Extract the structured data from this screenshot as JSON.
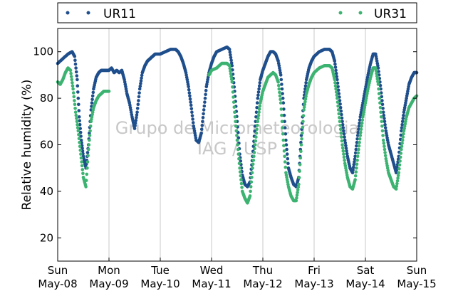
{
  "chart_data": {
    "type": "scatter",
    "ylabel": "Relative humidity (%)",
    "ylim": [
      10,
      110
    ],
    "yticks": [
      20,
      40,
      60,
      80,
      100
    ],
    "x_unit": "days since Sun May-08 00:00",
    "xlim": [
      0,
      7
    ],
    "xticks": [
      {
        "x": 0,
        "day": "Sun",
        "date": "May-08"
      },
      {
        "x": 1,
        "day": "Mon",
        "date": "May-09"
      },
      {
        "x": 2,
        "day": "Tue",
        "date": "May-10"
      },
      {
        "x": 3,
        "day": "Wed",
        "date": "May-11"
      },
      {
        "x": 4,
        "day": "Thu",
        "date": "May-12"
      },
      {
        "x": 5,
        "day": "Fri",
        "date": "May-13"
      },
      {
        "x": 6,
        "day": "Sat",
        "date": "May-14"
      },
      {
        "x": 7,
        "day": "Sun",
        "date": "May-15"
      }
    ],
    "grid": "vertical",
    "legend_position": "top",
    "watermark": [
      "Grupo de Micrometeorologia",
      "IAG / USP"
    ],
    "series": [
      {
        "name": "UR11",
        "color": "#1f4e8c",
        "points": [
          [
            0.0,
            95
          ],
          [
            0.1,
            97
          ],
          [
            0.2,
            99
          ],
          [
            0.28,
            100
          ],
          [
            0.33,
            98
          ],
          [
            0.38,
            88
          ],
          [
            0.42,
            72
          ],
          [
            0.46,
            62
          ],
          [
            0.5,
            55
          ],
          [
            0.55,
            50
          ],
          [
            0.6,
            60
          ],
          [
            0.65,
            75
          ],
          [
            0.7,
            84
          ],
          [
            0.75,
            89
          ],
          [
            0.8,
            91
          ],
          [
            0.85,
            92
          ],
          [
            0.9,
            92
          ],
          [
            0.95,
            92
          ],
          [
            1.0,
            92
          ],
          [
            1.05,
            93
          ],
          [
            1.1,
            91
          ],
          [
            1.15,
            92
          ],
          [
            1.2,
            91
          ],
          [
            1.25,
            92
          ],
          [
            1.3,
            88
          ],
          [
            1.35,
            82
          ],
          [
            1.4,
            78
          ],
          [
            1.45,
            72
          ],
          [
            1.5,
            67
          ],
          [
            1.55,
            74
          ],
          [
            1.6,
            84
          ],
          [
            1.65,
            91
          ],
          [
            1.7,
            94
          ],
          [
            1.75,
            96
          ],
          [
            1.8,
            97
          ],
          [
            1.85,
            98
          ],
          [
            1.9,
            99
          ],
          [
            2.0,
            99
          ],
          [
            2.1,
            100
          ],
          [
            2.2,
            101
          ],
          [
            2.3,
            101
          ],
          [
            2.35,
            100
          ],
          [
            2.4,
            98
          ],
          [
            2.45,
            95
          ],
          [
            2.5,
            91
          ],
          [
            2.55,
            85
          ],
          [
            2.6,
            77
          ],
          [
            2.65,
            68
          ],
          [
            2.7,
            62
          ],
          [
            2.75,
            61
          ],
          [
            2.8,
            65
          ],
          [
            2.85,
            75
          ],
          [
            2.9,
            85
          ],
          [
            2.95,
            91
          ],
          [
            3.0,
            95
          ],
          [
            3.05,
            98
          ],
          [
            3.1,
            100
          ],
          [
            3.2,
            101
          ],
          [
            3.3,
            102
          ],
          [
            3.35,
            101
          ],
          [
            3.4,
            94
          ],
          [
            3.45,
            83
          ],
          [
            3.5,
            70
          ],
          [
            3.55,
            56
          ],
          [
            3.6,
            47
          ],
          [
            3.65,
            43
          ],
          [
            3.7,
            42
          ],
          [
            3.75,
            44
          ],
          [
            3.8,
            55
          ],
          [
            3.85,
            68
          ],
          [
            3.9,
            80
          ],
          [
            3.95,
            88
          ],
          [
            4.0,
            92
          ],
          [
            4.05,
            95
          ],
          [
            4.1,
            98
          ],
          [
            4.15,
            100
          ],
          [
            4.2,
            100
          ],
          [
            4.25,
            99
          ],
          [
            4.3,
            96
          ],
          [
            4.35,
            90
          ],
          [
            4.4,
            78
          ],
          [
            4.45,
            62
          ],
          [
            4.5,
            50
          ],
          [
            4.55,
            46
          ],
          [
            4.6,
            43
          ],
          [
            4.65,
            42
          ],
          [
            4.7,
            46
          ],
          [
            4.75,
            64
          ],
          [
            4.8,
            80
          ],
          [
            4.85,
            88
          ],
          [
            4.9,
            93
          ],
          [
            4.95,
            96
          ],
          [
            5.0,
            98
          ],
          [
            5.1,
            100
          ],
          [
            5.2,
            101
          ],
          [
            5.3,
            101
          ],
          [
            5.35,
            100
          ],
          [
            5.4,
            96
          ],
          [
            5.45,
            88
          ],
          [
            5.5,
            79
          ],
          [
            5.55,
            70
          ],
          [
            5.6,
            62
          ],
          [
            5.65,
            55
          ],
          [
            5.7,
            50
          ],
          [
            5.75,
            48
          ],
          [
            5.8,
            55
          ],
          [
            5.85,
            64
          ],
          [
            5.9,
            72
          ],
          [
            5.95,
            78
          ],
          [
            6.0,
            84
          ],
          [
            6.05,
            90
          ],
          [
            6.1,
            95
          ],
          [
            6.15,
            99
          ],
          [
            6.2,
            99
          ],
          [
            6.25,
            93
          ],
          [
            6.3,
            84
          ],
          [
            6.35,
            74
          ],
          [
            6.4,
            66
          ],
          [
            6.45,
            60
          ],
          [
            6.5,
            56
          ],
          [
            6.55,
            52
          ],
          [
            6.6,
            48
          ],
          [
            6.65,
            55
          ],
          [
            6.7,
            66
          ],
          [
            6.75,
            74
          ],
          [
            6.8,
            80
          ],
          [
            6.85,
            86
          ],
          [
            6.9,
            89
          ],
          [
            6.95,
            91
          ],
          [
            7.0,
            91
          ]
        ]
      },
      {
        "name": "UR31",
        "color": "#3cb371",
        "points": [
          [
            0.0,
            87
          ],
          [
            0.05,
            86
          ],
          [
            0.1,
            88
          ],
          [
            0.15,
            91
          ],
          [
            0.2,
            93
          ],
          [
            0.25,
            92
          ],
          [
            0.3,
            84
          ],
          [
            0.35,
            74
          ],
          [
            0.4,
            66
          ],
          [
            0.45,
            56
          ],
          [
            0.5,
            46
          ],
          [
            0.55,
            42
          ],
          [
            0.6,
            58
          ],
          [
            0.65,
            70
          ],
          [
            0.7,
            76
          ],
          [
            0.75,
            79
          ],
          [
            0.8,
            81
          ],
          [
            0.85,
            82
          ],
          [
            0.9,
            83
          ],
          [
            0.95,
            83
          ],
          [
            1.0,
            83
          ],
          [
            2.95,
            90
          ],
          [
            3.0,
            92
          ],
          [
            3.1,
            93
          ],
          [
            3.2,
            95
          ],
          [
            3.3,
            95
          ],
          [
            3.35,
            94
          ],
          [
            3.4,
            87
          ],
          [
            3.45,
            74
          ],
          [
            3.5,
            62
          ],
          [
            3.55,
            50
          ],
          [
            3.6,
            40
          ],
          [
            3.65,
            37
          ],
          [
            3.7,
            35
          ],
          [
            3.75,
            38
          ],
          [
            3.8,
            50
          ],
          [
            3.85,
            60
          ],
          [
            3.9,
            70
          ],
          [
            3.95,
            78
          ],
          [
            4.0,
            83
          ],
          [
            4.05,
            86
          ],
          [
            4.1,
            89
          ],
          [
            4.15,
            90
          ],
          [
            4.2,
            91
          ],
          [
            4.25,
            90
          ],
          [
            4.3,
            87
          ],
          [
            4.35,
            78
          ],
          [
            4.4,
            62
          ],
          [
            4.45,
            48
          ],
          [
            4.5,
            42
          ],
          [
            4.55,
            38
          ],
          [
            4.6,
            36
          ],
          [
            4.65,
            36
          ],
          [
            4.7,
            43
          ],
          [
            4.75,
            60
          ],
          [
            4.8,
            75
          ],
          [
            4.85,
            82
          ],
          [
            4.9,
            86
          ],
          [
            4.95,
            89
          ],
          [
            5.0,
            91
          ],
          [
            5.1,
            93
          ],
          [
            5.2,
            94
          ],
          [
            5.3,
            94
          ],
          [
            5.35,
            93
          ],
          [
            5.4,
            88
          ],
          [
            5.45,
            80
          ],
          [
            5.5,
            70
          ],
          [
            5.55,
            60
          ],
          [
            5.6,
            52
          ],
          [
            5.65,
            46
          ],
          [
            5.7,
            42
          ],
          [
            5.75,
            41
          ],
          [
            5.8,
            45
          ],
          [
            5.85,
            55
          ],
          [
            5.9,
            64
          ],
          [
            5.95,
            72
          ],
          [
            6.0,
            78
          ],
          [
            6.05,
            84
          ],
          [
            6.1,
            89
          ],
          [
            6.15,
            93
          ],
          [
            6.2,
            93
          ],
          [
            6.25,
            86
          ],
          [
            6.3,
            74
          ],
          [
            6.35,
            62
          ],
          [
            6.4,
            54
          ],
          [
            6.45,
            48
          ],
          [
            6.5,
            45
          ],
          [
            6.55,
            42
          ],
          [
            6.6,
            41
          ],
          [
            6.65,
            48
          ],
          [
            6.7,
            58
          ],
          [
            6.75,
            66
          ],
          [
            6.8,
            72
          ],
          [
            6.85,
            76
          ],
          [
            6.9,
            78
          ],
          [
            6.95,
            80
          ],
          [
            7.0,
            81
          ]
        ]
      }
    ]
  }
}
